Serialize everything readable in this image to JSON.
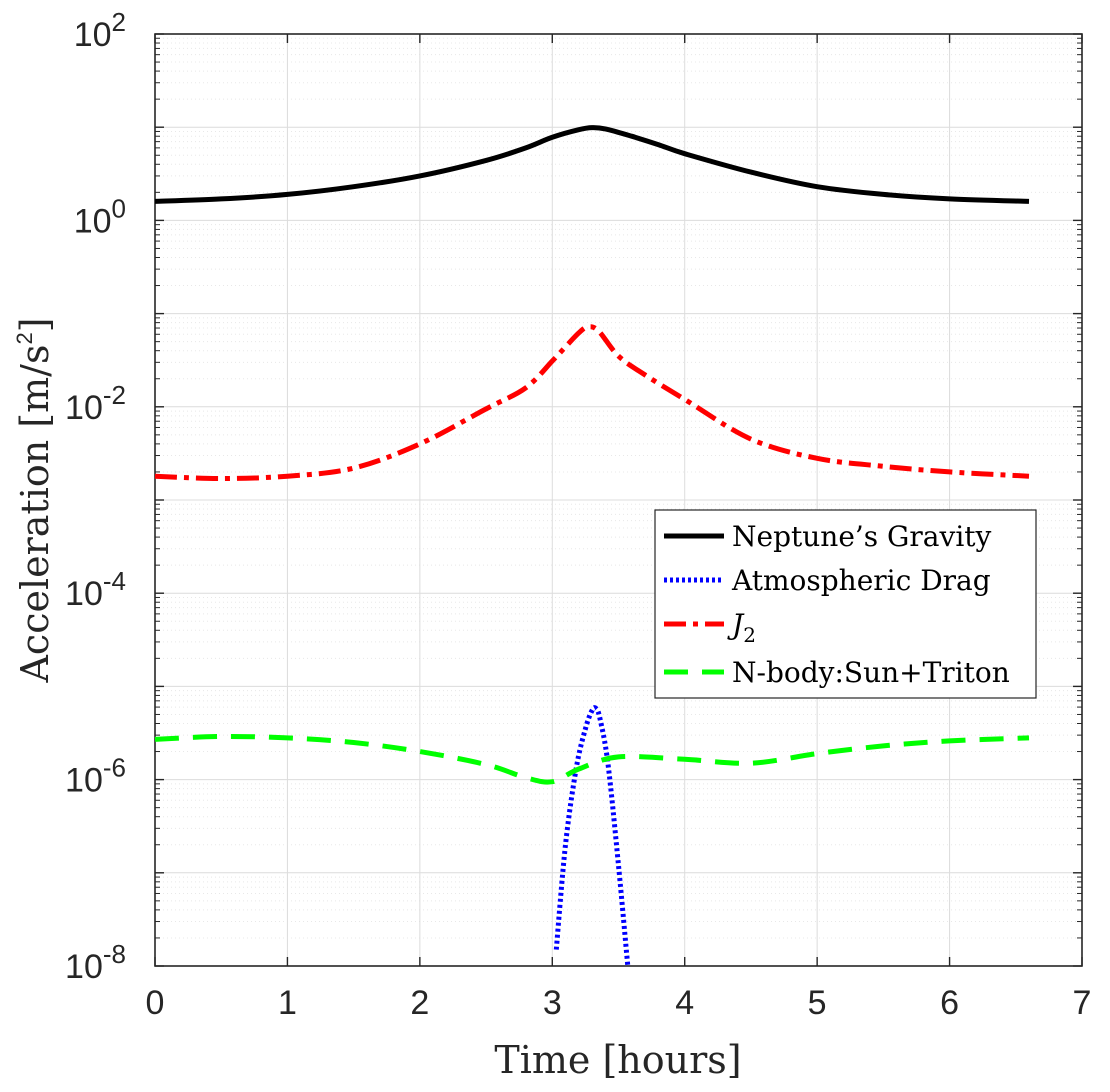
{
  "chart_data": {
    "type": "line",
    "title": "",
    "xlabel": "Time [hours]",
    "ylabel": "Acceleration [m/s",
    "ylabel_sup": "2",
    "ylabel_suffix": "]",
    "xlim": [
      0,
      7
    ],
    "ylim": [
      1e-08,
      100
    ],
    "yscale": "log",
    "grid": true,
    "minor_grid": true,
    "legend_position": "right",
    "x_ticks": [
      "0",
      "1",
      "2",
      "3",
      "4",
      "5",
      "6",
      "7"
    ],
    "y_ticks": [
      {
        "base": "10",
        "exp": "2"
      },
      {
        "base": "10",
        "exp": "0"
      },
      {
        "base": "10",
        "exp": "-2"
      },
      {
        "base": "10",
        "exp": "-4"
      },
      {
        "base": "10",
        "exp": "-6"
      },
      {
        "base": "10",
        "exp": "-8"
      }
    ],
    "series": [
      {
        "name": "Neptune’s Gravity",
        "color": "#000000",
        "style": "solid",
        "x": [
          0,
          0.5,
          1,
          1.5,
          2,
          2.5,
          2.8,
          3.0,
          3.2,
          3.3,
          3.4,
          3.6,
          3.8,
          4,
          4.5,
          5,
          5.5,
          6,
          6.6
        ],
        "y": [
          1.6,
          1.7,
          1.9,
          2.3,
          3.0,
          4.4,
          6.0,
          7.8,
          9.4,
          9.9,
          9.6,
          8.0,
          6.5,
          5.2,
          3.3,
          2.3,
          1.9,
          1.7,
          1.6
        ]
      },
      {
        "name": "Atmospheric Drag",
        "color": "#0000ff",
        "style": "dotted",
        "x": [
          3.03,
          3.1,
          3.18,
          3.25,
          3.3,
          3.33,
          3.36,
          3.42,
          3.5,
          3.57
        ],
        "y": [
          1.5e-08,
          2e-07,
          1.3e-06,
          3.5e-06,
          5.5e-06,
          5.8e-06,
          4.5e-06,
          1.5e-06,
          1.2e-07,
          1e-08
        ]
      },
      {
        "name": "J",
        "name_sub": "2",
        "color": "#ff0000",
        "style": "dashdot",
        "x": [
          0,
          0.5,
          1,
          1.5,
          2,
          2.5,
          2.8,
          3.0,
          3.1,
          3.2,
          3.27,
          3.35,
          3.5,
          3.7,
          4,
          4.5,
          5,
          5.5,
          6,
          6.6
        ],
        "y": [
          0.0018,
          0.0017,
          0.0018,
          0.0022,
          0.004,
          0.0095,
          0.016,
          0.031,
          0.044,
          0.062,
          0.072,
          0.065,
          0.035,
          0.022,
          0.012,
          0.0045,
          0.0028,
          0.0023,
          0.002,
          0.0018
        ]
      },
      {
        "name": "N-body:Sun+Triton",
        "color": "#00ff00",
        "style": "dashed",
        "x": [
          0,
          0.5,
          1,
          1.5,
          2,
          2.5,
          2.8,
          3.0,
          3.2,
          3.5,
          4,
          4.5,
          5,
          5.5,
          6,
          6.6
        ],
        "y": [
          2.7e-06,
          2.9e-06,
          2.8e-06,
          2.5e-06,
          2e-06,
          1.45e-06,
          1.05e-06,
          9.5e-07,
          1.3e-06,
          1.75e-06,
          1.65e-06,
          1.5e-06,
          1.9e-06,
          2.3e-06,
          2.6e-06,
          2.8e-06
        ]
      }
    ]
  }
}
